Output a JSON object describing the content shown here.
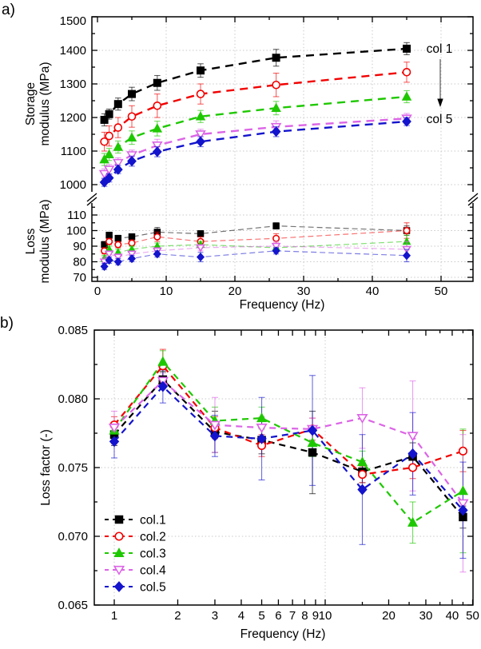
{
  "panel_a": {
    "label": "a)",
    "storage_axis": {
      "title": "Storage\nmodulus (MPa)",
      "ticks": [
        1000,
        1100,
        1200,
        1300,
        1400,
        1500
      ]
    },
    "loss_axis": {
      "title": "Loss\nmodulus (MPa)",
      "ticks": [
        70,
        80,
        90,
        100,
        110
      ]
    },
    "x_axis": {
      "title": "Frequency (Hz)",
      "ticks": [
        0,
        10,
        20,
        30,
        40,
        50
      ]
    },
    "annotation_top": "col 1",
    "annotation_bottom": "col 5"
  },
  "panel_b": {
    "label": "b)",
    "y_axis": {
      "title": "Loss factor (-)",
      "ticks": [
        "0.065",
        "0.070",
        "0.075",
        "0.080",
        "0.085"
      ]
    },
    "x_axis": {
      "title": "Frequency (Hz)",
      "ticks": [
        1,
        2,
        3,
        4,
        5,
        6,
        7,
        8,
        9,
        10,
        20,
        30,
        40,
        50
      ]
    },
    "legend": [
      "col.1",
      "col.2",
      "col.3",
      "col.4",
      "col.5"
    ]
  },
  "colors": {
    "col1": "#000000",
    "col2": "#f20000",
    "col3": "#1ec800",
    "col4": "#dc64e6",
    "col5": "#1414cd",
    "grid": "#c9c9c9",
    "axis": "#000000"
  },
  "chart_data": [
    {
      "type": "line",
      "panel": "a",
      "xlabel": "Frequency (Hz)",
      "xscale": "linear",
      "xlim": [
        0,
        54.7
      ],
      "x_ticks": [
        0,
        10,
        20,
        30,
        40,
        50
      ],
      "x": [
        1,
        1.7,
        3,
        5,
        8.7,
        15,
        26,
        45
      ],
      "grid": true,
      "axis_break": "y-axis broken between 110 MPa and 1000 MPa",
      "annotations": [
        "col 1",
        "col 5"
      ],
      "subplots": [
        {
          "ylabel": "Storage modulus (MPa)",
          "ylim": [
            1000,
            1500
          ],
          "yticks": [
            1000,
            1100,
            1200,
            1300,
            1400,
            1500
          ],
          "series": [
            {
              "name": "col 1",
              "color": "#000000",
              "marker": "square",
              "filled": true,
              "values": [
                1193,
                1210,
                1240,
                1270,
                1303,
                1340,
                1378,
                1405
              ],
              "errors": [
                18,
                15,
                18,
                20,
                22,
                20,
                25,
                18
              ]
            },
            {
              "name": "col 2",
              "color": "#f20000",
              "marker": "circle",
              "filled": false,
              "values": [
                1128,
                1145,
                1170,
                1203,
                1235,
                1270,
                1297,
                1335
              ],
              "errors": [
                28,
                30,
                30,
                32,
                35,
                30,
                35,
                30
              ]
            },
            {
              "name": "col 3",
              "color": "#1ec800",
              "marker": "triangle-up",
              "filled": true,
              "values": [
                1075,
                1090,
                1112,
                1140,
                1167,
                1203,
                1228,
                1262
              ],
              "errors": [
                18,
                18,
                18,
                20,
                22,
                18,
                20,
                18
              ]
            },
            {
              "name": "col 4",
              "color": "#dc64e6",
              "marker": "triangle-down",
              "filled": false,
              "values": [
                1032,
                1045,
                1065,
                1088,
                1117,
                1150,
                1172,
                1197
              ],
              "errors": [
                15,
                15,
                15,
                15,
                18,
                15,
                18,
                15
              ]
            },
            {
              "name": "col 5",
              "color": "#1414cd",
              "marker": "diamond",
              "filled": true,
              "values": [
                1007,
                1020,
                1045,
                1070,
                1098,
                1128,
                1158,
                1188
              ],
              "errors": [
                12,
                12,
                12,
                15,
                15,
                15,
                15,
                12
              ]
            }
          ]
        },
        {
          "ylabel": "Loss modulus (MPa)",
          "ylim": [
            70,
            110
          ],
          "yticks": [
            70,
            80,
            90,
            100,
            110
          ],
          "series": [
            {
              "name": "col 1",
              "color": "#000000",
              "marker": "square",
              "filled": true,
              "values": [
                91,
                97,
                95,
                96,
                99,
                98,
                103,
                100
              ],
              "errors": [
                2,
                2,
                2,
                2,
                3,
                2,
                2,
                3
              ]
            },
            {
              "name": "col 2",
              "color": "#f20000",
              "marker": "circle",
              "filled": false,
              "values": [
                87,
                93,
                91,
                92,
                96,
                93,
                95,
                100
              ],
              "errors": [
                2,
                2,
                2,
                2,
                3,
                3,
                3,
                5
              ]
            },
            {
              "name": "col 3",
              "color": "#1ec800",
              "marker": "triangle-up",
              "filled": true,
              "values": [
                82,
                88,
                86,
                88,
                90,
                91,
                89,
                93
              ],
              "errors": [
                2,
                2,
                2,
                2,
                2,
                2,
                2,
                4
              ]
            },
            {
              "name": "col 4",
              "color": "#dc64e6",
              "marker": "triangle-down",
              "filled": false,
              "values": [
                80,
                85,
                83,
                85,
                87,
                89,
                90,
                88
              ],
              "errors": [
                3,
                2,
                2,
                2,
                2,
                2,
                3,
                5
              ]
            },
            {
              "name": "col 5",
              "color": "#1414cd",
              "marker": "diamond",
              "filled": true,
              "values": [
                77,
                81,
                80,
                82,
                85,
                83,
                87,
                84
              ],
              "errors": [
                2,
                2,
                2,
                2,
                2,
                3,
                2,
                4
              ]
            }
          ]
        }
      ]
    },
    {
      "type": "line",
      "panel": "b",
      "xlabel": "Frequency (Hz)",
      "ylabel": "Loss factor (-)",
      "xscale": "log",
      "xlim": [
        0.8,
        55
      ],
      "ylim": [
        0.065,
        0.085
      ],
      "yticks": [
        0.065,
        0.07,
        0.075,
        0.08,
        0.085
      ],
      "ytick_labels": [
        "0.065",
        "0.070",
        "0.075",
        "0.080",
        "0.085"
      ],
      "x_ticks": [
        1,
        2,
        3,
        4,
        5,
        6,
        7,
        8,
        9,
        10,
        20,
        30,
        40,
        50
      ],
      "x_minor_ticks": [
        15,
        25,
        35,
        45
      ],
      "grid": true,
      "legend_position": "lower-left",
      "x": [
        1,
        1.7,
        3,
        5,
        8.7,
        15,
        26,
        45
      ],
      "series": [
        {
          "name": "col.1",
          "color": "#000000",
          "marker": "square",
          "filled": true,
          "values": [
            0.0774,
            0.0814,
            0.0776,
            0.077,
            0.0761,
            0.0747,
            0.0758,
            0.0714
          ],
          "errors": [
            0.0008,
            0.0006,
            0.0015,
            0.001,
            0.003,
            0.0008,
            0.001,
            0.0008
          ]
        },
        {
          "name": "col.2",
          "color": "#f20000",
          "marker": "circle",
          "filled": false,
          "values": [
            0.0781,
            0.0824,
            0.0779,
            0.0766,
            0.0778,
            0.0745,
            0.075,
            0.0762
          ],
          "errors": [
            0.0006,
            0.0012,
            0.0008,
            0.0008,
            0.0008,
            0.0006,
            0.0008,
            0.0015
          ]
        },
        {
          "name": "col.3",
          "color": "#1ec800",
          "marker": "triangle-up",
          "filled": true,
          "values": [
            0.0777,
            0.0827,
            0.0784,
            0.0786,
            0.0768,
            0.0754,
            0.071,
            0.0733
          ],
          "errors": [
            0.0006,
            0.0008,
            0.001,
            0.0008,
            0.001,
            0.0008,
            0.0015,
            0.0045
          ]
        },
        {
          "name": "col.4",
          "color": "#dc64e6",
          "marker": "triangle-down",
          "filled": false,
          "values": [
            0.0779,
            0.0813,
            0.0781,
            0.0779,
            0.0778,
            0.0786,
            0.0773,
            0.0724
          ],
          "errors": [
            0.0012,
            0.0006,
            0.002,
            0.0008,
            0.0008,
            0.0022,
            0.004,
            0.005
          ]
        },
        {
          "name": "col.5",
          "color": "#1414cd",
          "marker": "diamond",
          "filled": true,
          "values": [
            0.0769,
            0.0809,
            0.0773,
            0.0771,
            0.0777,
            0.0734,
            0.076,
            0.0719
          ],
          "errors": [
            0.0012,
            0.0012,
            0.0015,
            0.003,
            0.004,
            0.004,
            0.003,
            0.0035
          ]
        }
      ]
    }
  ]
}
